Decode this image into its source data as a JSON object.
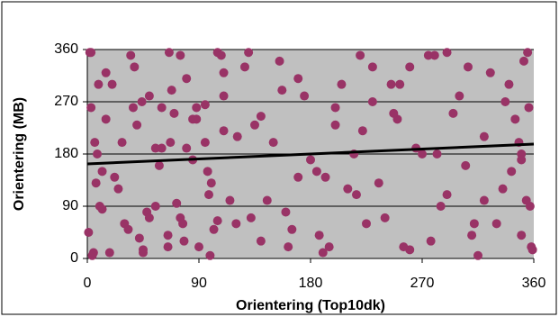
{
  "chart_data": {
    "type": "scatter",
    "x_label": "Orientering (Top10dk)",
    "y_label": "Orientering (MB)",
    "xlim": [
      0,
      360
    ],
    "ylim": [
      0,
      360
    ],
    "xticks": [
      0,
      90,
      180,
      270,
      360
    ],
    "yticks": [
      0,
      90,
      180,
      270,
      360
    ],
    "grid": true,
    "background": "#c0c0c0",
    "series": [
      {
        "color": "#993366",
        "x": [
          2,
          5,
          8,
          3,
          10,
          15,
          1,
          6,
          12,
          4,
          20,
          25,
          30,
          35,
          40,
          45,
          50,
          55,
          60,
          65,
          70,
          75,
          80,
          85,
          90,
          95,
          100,
          105,
          110,
          115,
          18,
          28,
          38,
          48,
          58,
          68,
          78,
          88,
          98,
          108,
          22,
          33,
          44,
          55,
          66,
          77,
          88,
          99,
          110,
          121,
          130,
          140,
          150,
          160,
          170,
          180,
          190,
          200,
          210,
          220,
          135,
          145,
          155,
          165,
          175,
          185,
          195,
          205,
          215,
          225,
          230,
          240,
          250,
          260,
          270,
          280,
          290,
          300,
          310,
          320,
          235,
          245,
          255,
          265,
          275,
          285,
          295,
          305,
          315,
          325,
          330,
          340,
          350,
          355,
          358,
          345,
          335,
          352,
          357,
          348,
          12,
          42,
          72,
          102,
          132,
          162,
          192,
          222,
          252,
          282,
          312,
          342,
          7,
          37,
          67,
          97,
          127,
          157,
          187,
          217,
          247,
          277,
          307,
          337,
          356,
          3,
          9,
          354,
          359,
          350,
          60,
          85,
          110,
          80,
          95,
          50,
          65,
          120,
          140,
          170,
          200,
          230,
          260,
          290,
          320,
          350,
          15,
          45,
          75,
          105
        ],
        "values": [
          355,
          10,
          180,
          260,
          90,
          320,
          45,
          200,
          150,
          5,
          300,
          120,
          60,
          350,
          230,
          15,
          280,
          90,
          190,
          40,
          250,
          70,
          310,
          170,
          20,
          265,
          130,
          355,
          220,
          100,
          10,
          200,
          330,
          80,
          160,
          290,
          30,
          240,
          110,
          350,
          140,
          50,
          270,
          190,
          355,
          60,
          260,
          5,
          320,
          210,
          355,
          30,
          200,
          80,
          310,
          170,
          10,
          260,
          120,
          350,
          230,
          100,
          340,
          50,
          280,
          150,
          20,
          300,
          180,
          60,
          330,
          70,
          240,
          15,
          180,
          350,
          110,
          280,
          40,
          210,
          130,
          300,
          20,
          190,
          350,
          90,
          250,
          160,
          5,
          320,
          60,
          300,
          180,
          355,
          20,
          240,
          120,
          340,
          90,
          200,
          85,
          35,
          95,
          50,
          70,
          20,
          140,
          220,
          300,
          180,
          60,
          150,
          130,
          260,
          200,
          150,
          330,
          290,
          40,
          110,
          250,
          30,
          330,
          270,
          260,
          355,
          300,
          100,
          15,
          40,
          260,
          240,
          280,
          190,
          200,
          70,
          20,
          60,
          245,
          140,
          230,
          270,
          330,
          355,
          100,
          170,
          240,
          10,
          350,
          65
        ]
      }
    ],
    "trendline": {
      "color": "#000000",
      "x": [
        0,
        360
      ],
      "values": [
        163,
        197
      ]
    }
  }
}
